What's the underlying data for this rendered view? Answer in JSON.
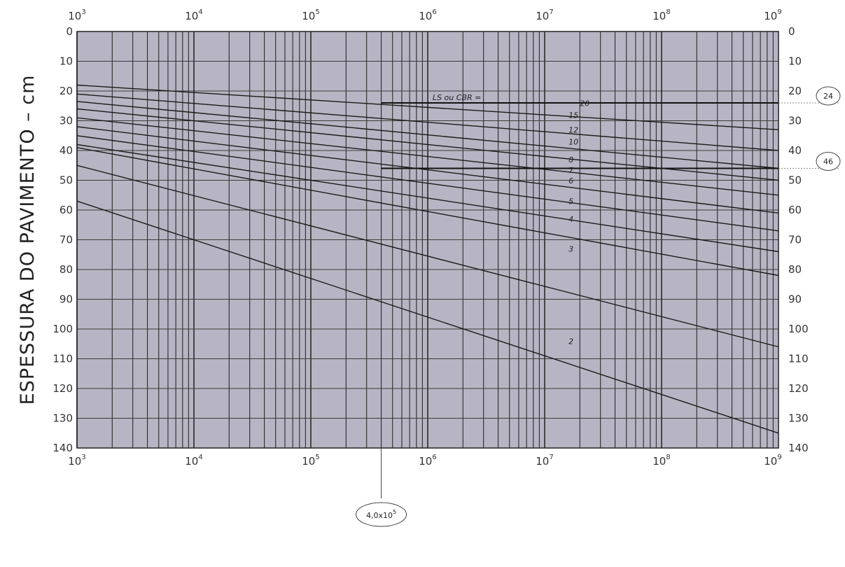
{
  "chart_data": {
    "type": "line",
    "title": "",
    "ylabel": "ESPESSURA DO PAVIMENTO  –  cm",
    "xlabel": "",
    "x_scale": "log",
    "xlim": [
      1000,
      1000000000
    ],
    "ylim": [
      0,
      140
    ],
    "y_inverted": true,
    "grid": true,
    "x_ticks": [
      {
        "base": "10",
        "exp": "3",
        "value": 1000
      },
      {
        "base": "10",
        "exp": "4",
        "value": 10000
      },
      {
        "base": "10",
        "exp": "5",
        "value": 100000
      },
      {
        "base": "10",
        "exp": "6",
        "value": 1000000
      },
      {
        "base": "10",
        "exp": "7",
        "value": 10000000
      },
      {
        "base": "10",
        "exp": "8",
        "value": 100000000
      },
      {
        "base": "10",
        "exp": "9",
        "value": 1000000000
      }
    ],
    "y_ticks": [
      "0",
      "10",
      "20",
      "30",
      "40",
      "50",
      "60",
      "70",
      "80",
      "90",
      "100",
      "110",
      "120",
      "130",
      "140"
    ],
    "series": [
      {
        "name": "20",
        "label": "20",
        "label_at": [
          20000000,
          25
        ],
        "x": [
          1000,
          1000000000
        ],
        "y": [
          18,
          33
        ]
      },
      {
        "name": "15",
        "label": "15",
        "label_at": [
          16000000,
          29
        ],
        "x": [
          1000,
          1000000000
        ],
        "y": [
          21,
          40
        ]
      },
      {
        "name": "12",
        "label": "12",
        "label_at": [
          16000000,
          34
        ],
        "x": [
          1000,
          1000000000
        ],
        "y": [
          23.5,
          46
        ]
      },
      {
        "name": "10",
        "label": "10",
        "label_at": [
          16000000,
          38
        ],
        "x": [
          1000,
          1000000000
        ],
        "y": [
          26,
          50
        ]
      },
      {
        "name": "8",
        "label": "8",
        "label_at": [
          16000000,
          44
        ],
        "x": [
          1000,
          1000000000
        ],
        "y": [
          29,
          55
        ]
      },
      {
        "name": "7",
        "label": "7",
        "label_at": [
          16000000,
          47.5
        ],
        "x": [
          1000,
          1000000000
        ],
        "y": [
          32,
          61
        ]
      },
      {
        "name": "6",
        "label": "6",
        "label_at": [
          16000000,
          51
        ],
        "x": [
          1000,
          1000000000
        ],
        "y": [
          35,
          67
        ]
      },
      {
        "name": "5",
        "label": "5",
        "label_at": [
          16000000,
          58
        ],
        "x": [
          1000,
          1000000000
        ],
        "y": [
          38,
          74
        ]
      },
      {
        "name": "4",
        "label": "4",
        "label_at": [
          16000000,
          64
        ],
        "x": [
          1000,
          1000000000
        ],
        "y": [
          39,
          82
        ]
      },
      {
        "name": "3",
        "label": "3",
        "label_at": [
          16000000,
          74
        ],
        "x": [
          1000,
          1000000000
        ],
        "y": [
          45,
          106
        ]
      },
      {
        "name": "2",
        "label": "2",
        "label_at": [
          16000000,
          105
        ],
        "x": [
          1000,
          1000000000
        ],
        "y": [
          57,
          135
        ]
      }
    ],
    "horizontal_lines": [
      {
        "value": 24,
        "from_x": 400000,
        "label": "24"
      },
      {
        "value": 46,
        "from_x": 400000,
        "label": "46"
      }
    ],
    "annotations": [
      {
        "text": "LS ou CBR =",
        "x": 1100000,
        "y": 23
      },
      {
        "text_base": "4,0x10",
        "text_exp": "5",
        "x": 400000
      }
    ]
  }
}
